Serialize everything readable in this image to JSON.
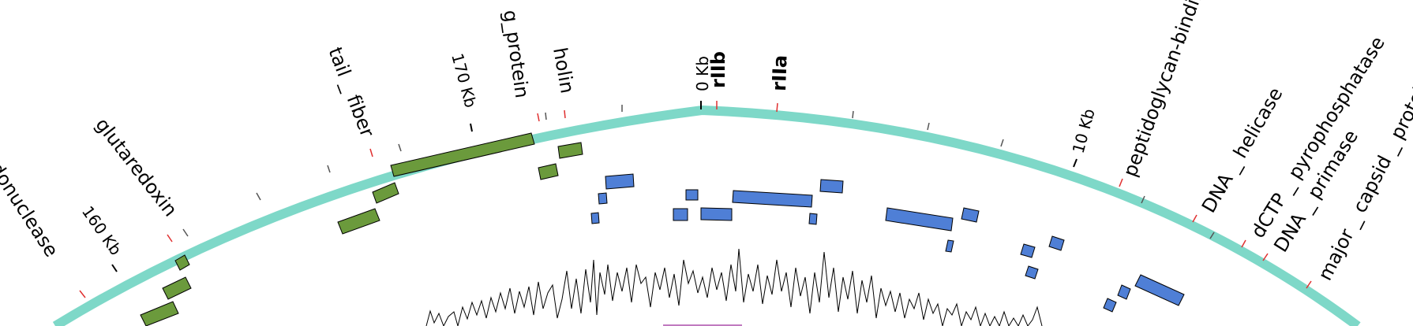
{
  "colors": {
    "backbone": "#7ed8c8",
    "forward_gene": "#6b9a3c",
    "reverse_gene": "#4f7fd6",
    "tick_red": "#e03030",
    "stroke": "#000000"
  },
  "scale_labels": [
    {
      "id": "160",
      "text": "160 Kb"
    },
    {
      "id": "170",
      "text": "170 Kb"
    },
    {
      "id": "0",
      "text": "0 Kb"
    },
    {
      "id": "10",
      "text": "10 Kb"
    }
  ],
  "gene_labels": [
    {
      "id": "endonuclease",
      "text": "endonuclease"
    },
    {
      "id": "glutaredoxin",
      "text": "glutaredoxin"
    },
    {
      "id": "tail-fiber",
      "text": "tail _ fiber"
    },
    {
      "id": "g-protein",
      "text": "g_protein"
    },
    {
      "id": "holin",
      "text": "holin"
    },
    {
      "id": "rllb",
      "text": "rIIb"
    },
    {
      "id": "rlla",
      "text": "rIIa"
    },
    {
      "id": "peptidoglycan",
      "text": "peptidoglycan-binding"
    },
    {
      "id": "dna-helicase",
      "text": "DNA _ helicase"
    },
    {
      "id": "dctp",
      "text": "dCTP _ pyrophosphatase"
    },
    {
      "id": "dna-primase",
      "text": "DNA _ primase"
    },
    {
      "id": "major-capsid",
      "text": "major _ capsid _ protein"
    }
  ]
}
